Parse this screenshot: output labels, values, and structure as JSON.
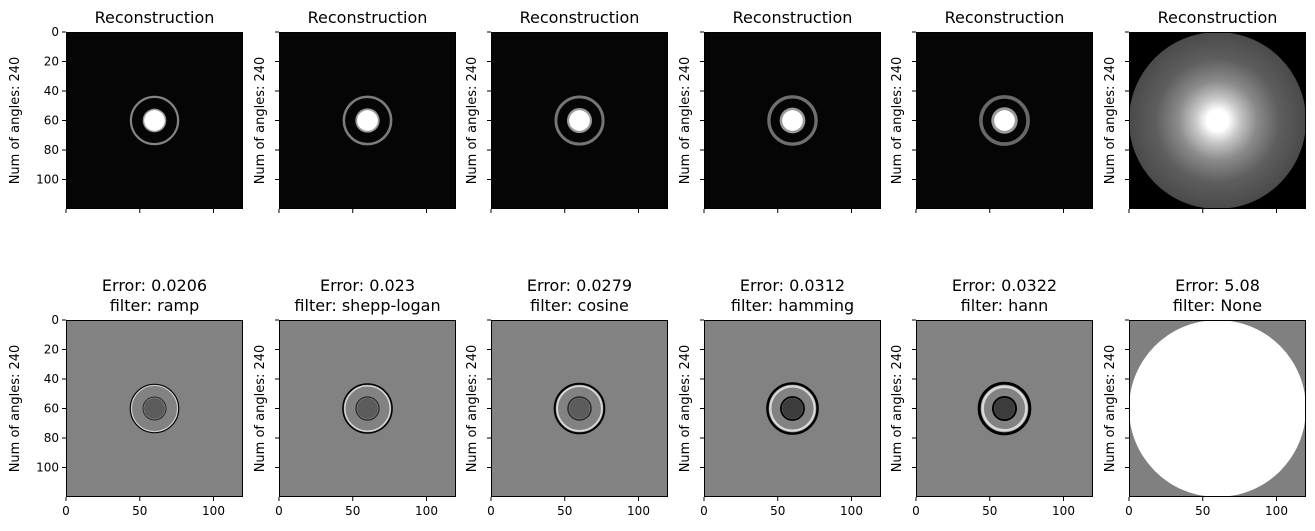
{
  "chart_data": {
    "type": "heatmap",
    "layout": "grid-2x6",
    "colormap": "gray",
    "y_label": "Num of angles: 240",
    "x_ticks": [
      0,
      50,
      100
    ],
    "y_ticks": [
      0,
      20,
      40,
      60,
      80,
      100
    ],
    "xlim": [
      0,
      120
    ],
    "ylim": [
      120,
      0
    ],
    "grid": false,
    "reconstruction_title": "Reconstruction",
    "panels": [
      {
        "filter": "ramp",
        "error": "0.0206",
        "error_title": "Error: 0.0206",
        "filter_title": "filter: ramp"
      },
      {
        "filter": "shepp-logan",
        "error": "0.023",
        "error_title": "Error: 0.023",
        "filter_title": "filter: shepp-logan"
      },
      {
        "filter": "cosine",
        "error": "0.0279",
        "error_title": "Error: 0.0279",
        "filter_title": "filter: cosine"
      },
      {
        "filter": "hamming",
        "error": "0.0312",
        "error_title": "Error: 0.0312",
        "filter_title": "filter: hamming"
      },
      {
        "filter": "hann",
        "error": "0.0322",
        "error_title": "Error: 0.0322",
        "filter_title": "filter: hann"
      },
      {
        "filter": "None",
        "error": "5.08",
        "error_title": "Error: 5.08",
        "filter_title": "filter: None"
      }
    ],
    "image_features": {
      "phantom_center": [
        60,
        60
      ],
      "disk_radius": 7,
      "ring_radius": 16
    }
  }
}
